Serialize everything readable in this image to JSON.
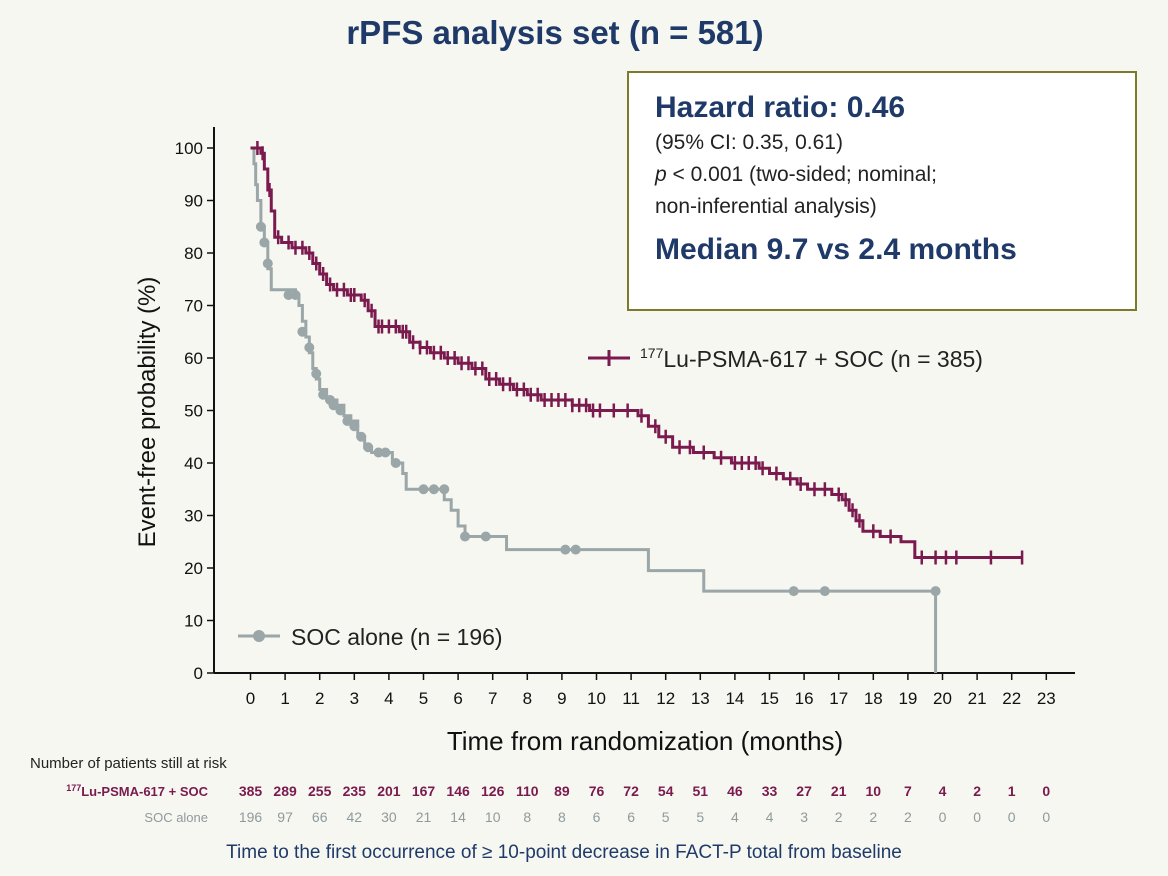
{
  "title": "rPFS analysis set (n = 581)",
  "box": {
    "hr": "Hazard ratio: 0.46",
    "ci": "(95% CI: 0.35, 0.61)",
    "p_symbol": "p",
    "p_rest": " < 0.001 (two-sided; nominal;",
    "p_line2": "non-inferential analysis)",
    "median": "Median 9.7 vs 2.4 months"
  },
  "footer": "Time to the first occurrence of ≥ 10-point decrease in FACT-P total from baseline",
  "colors": {
    "lu": "#7a1a4e",
    "soc": "#9aa6a8",
    "title": "#1f3a68",
    "box_border": "#7d7a2a"
  },
  "chart_data": {
    "type": "line",
    "xlabel": "Time from randomization (months)",
    "ylabel": "Event-free probability (%)",
    "xlim": [
      -1,
      24
    ],
    "ylim": [
      0,
      100
    ],
    "xticks": [
      0,
      1,
      2,
      3,
      4,
      5,
      6,
      7,
      8,
      9,
      10,
      11,
      12,
      13,
      14,
      15,
      16,
      17,
      18,
      19,
      20,
      21,
      22,
      23
    ],
    "yticks": [
      0,
      10,
      20,
      30,
      40,
      50,
      60,
      70,
      80,
      90,
      100
    ],
    "series": [
      {
        "name": "177Lu-PSMA-617 + SOC (n = 385)",
        "name_super": "177",
        "name_rest": "Lu-PSMA-617 + SOC (n = 385)",
        "marker": "cross",
        "points": [
          [
            0,
            100
          ],
          [
            0.3,
            99
          ],
          [
            0.4,
            96
          ],
          [
            0.5,
            92
          ],
          [
            0.6,
            88
          ],
          [
            0.7,
            83
          ],
          [
            0.9,
            82
          ],
          [
            1.2,
            81
          ],
          [
            1.6,
            80
          ],
          [
            1.8,
            78
          ],
          [
            2,
            76
          ],
          [
            2.2,
            74
          ],
          [
            2.4,
            73
          ],
          [
            2.8,
            72
          ],
          [
            3.2,
            71
          ],
          [
            3.4,
            69
          ],
          [
            3.6,
            66
          ],
          [
            3.9,
            66
          ],
          [
            4.3,
            65
          ],
          [
            4.6,
            63
          ],
          [
            4.9,
            62
          ],
          [
            5.2,
            61
          ],
          [
            5.6,
            60
          ],
          [
            6,
            59
          ],
          [
            6.4,
            58
          ],
          [
            6.8,
            56
          ],
          [
            7.2,
            55
          ],
          [
            7.6,
            54
          ],
          [
            8,
            53
          ],
          [
            8.4,
            52
          ],
          [
            8.9,
            52
          ],
          [
            9.3,
            51
          ],
          [
            9.8,
            50
          ],
          [
            10.4,
            50
          ],
          [
            11.2,
            49
          ],
          [
            11.5,
            47
          ],
          [
            11.8,
            45
          ],
          [
            12.2,
            43
          ],
          [
            12.8,
            42
          ],
          [
            13.4,
            41
          ],
          [
            13.9,
            40
          ],
          [
            14.7,
            39
          ],
          [
            15,
            38
          ],
          [
            15.4,
            37
          ],
          [
            15.8,
            36
          ],
          [
            16.1,
            35
          ],
          [
            16.8,
            34
          ],
          [
            17.1,
            33
          ],
          [
            17.3,
            31
          ],
          [
            17.5,
            29
          ],
          [
            17.7,
            27
          ],
          [
            18.2,
            26
          ],
          [
            18.8,
            25
          ],
          [
            19.2,
            22
          ],
          [
            22.3,
            22
          ]
        ],
        "censors": [
          0.2,
          0.35,
          0.55,
          0.8,
          1.1,
          1.3,
          1.5,
          1.7,
          1.9,
          2.1,
          2.3,
          2.5,
          2.7,
          2.9,
          3.0,
          3.3,
          3.5,
          3.7,
          3.8,
          4.0,
          4.2,
          4.4,
          4.5,
          4.7,
          4.9,
          5.1,
          5.3,
          5.5,
          5.7,
          5.9,
          6.1,
          6.3,
          6.5,
          6.7,
          6.9,
          7.1,
          7.3,
          7.5,
          7.7,
          7.9,
          8.1,
          8.3,
          8.5,
          8.7,
          8.9,
          9.1,
          9.3,
          9.5,
          9.7,
          9.9,
          10.1,
          10.5,
          10.9,
          11.3,
          11.7,
          12.0,
          12.4,
          12.7,
          13.1,
          13.6,
          14.0,
          14.2,
          14.4,
          14.6,
          14.8,
          15.2,
          15.6,
          15.9,
          16.3,
          16.6,
          17.0,
          17.2,
          17.4,
          17.6,
          18.0,
          18.5,
          19.4,
          19.8,
          20.1,
          20.4,
          21.4,
          22.3
        ]
      },
      {
        "name": "SOC alone (n = 196)",
        "marker": "circle",
        "points": [
          [
            0,
            100
          ],
          [
            0.1,
            97
          ],
          [
            0.15,
            93
          ],
          [
            0.2,
            90
          ],
          [
            0.3,
            85
          ],
          [
            0.4,
            82
          ],
          [
            0.5,
            77
          ],
          [
            0.6,
            73
          ],
          [
            1.3,
            72
          ],
          [
            1.4,
            70
          ],
          [
            1.5,
            67
          ],
          [
            1.6,
            64
          ],
          [
            1.7,
            61
          ],
          [
            1.8,
            58
          ],
          [
            1.9,
            56
          ],
          [
            2,
            54
          ],
          [
            2.2,
            52
          ],
          [
            2.5,
            51
          ],
          [
            2.7,
            49
          ],
          [
            2.9,
            48
          ],
          [
            3.1,
            45
          ],
          [
            3.3,
            43
          ],
          [
            3.5,
            42
          ],
          [
            4.1,
            40
          ],
          [
            4.4,
            38
          ],
          [
            4.5,
            35
          ],
          [
            5.6,
            33
          ],
          [
            5.8,
            31
          ],
          [
            6,
            28
          ],
          [
            6.2,
            26
          ],
          [
            7.4,
            23.5
          ],
          [
            11.5,
            19.5
          ],
          [
            13.1,
            15.6
          ],
          [
            19.8,
            15.6
          ],
          [
            19.8,
            0
          ]
        ],
        "censors": [
          [
            0.3,
            85
          ],
          [
            0.4,
            82
          ],
          [
            0.5,
            78
          ],
          [
            1.1,
            72
          ],
          [
            1.3,
            72
          ],
          [
            1.5,
            65
          ],
          [
            1.7,
            62
          ],
          [
            1.9,
            57
          ],
          [
            2.1,
            53
          ],
          [
            2.3,
            52
          ],
          [
            2.4,
            51
          ],
          [
            2.6,
            50
          ],
          [
            2.8,
            48
          ],
          [
            3,
            47
          ],
          [
            3.2,
            45
          ],
          [
            3.4,
            43
          ],
          [
            3.7,
            42
          ],
          [
            3.9,
            42
          ],
          [
            4.2,
            40
          ],
          [
            5,
            35
          ],
          [
            5.3,
            35
          ],
          [
            5.6,
            35
          ],
          [
            6.2,
            26
          ],
          [
            6.8,
            26
          ],
          [
            9.1,
            23.5
          ],
          [
            9.4,
            23.5
          ],
          [
            15.7,
            15.6
          ],
          [
            16.6,
            15.6
          ],
          [
            19.8,
            15.6
          ]
        ]
      }
    ],
    "risk_table": {
      "heading": "Number of patients still at risk",
      "times": [
        0,
        1,
        2,
        3,
        4,
        5,
        6,
        7,
        8,
        9,
        10,
        11,
        12,
        13,
        14,
        15,
        16,
        17,
        18,
        19,
        20,
        21,
        22,
        23
      ],
      "rows": [
        {
          "label_super": "177",
          "label_rest": "Lu-PSMA-617 + SOC",
          "values": [
            385,
            289,
            255,
            235,
            201,
            167,
            146,
            126,
            110,
            89,
            76,
            72,
            54,
            51,
            46,
            33,
            27,
            21,
            10,
            7,
            4,
            2,
            1,
            0
          ]
        },
        {
          "label": "SOC alone",
          "values": [
            196,
            97,
            66,
            42,
            30,
            21,
            14,
            10,
            8,
            8,
            6,
            6,
            5,
            5,
            4,
            4,
            3,
            2,
            2,
            2,
            0,
            0,
            0,
            0
          ]
        }
      ]
    }
  }
}
